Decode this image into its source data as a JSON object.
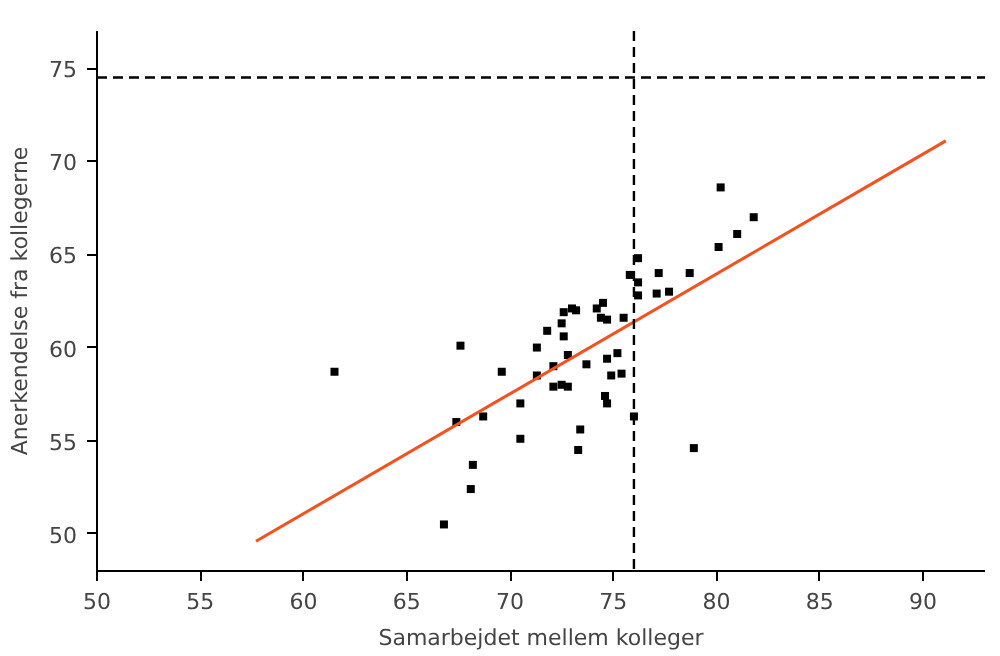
{
  "chart_data": {
    "type": "scatter",
    "xlabel": "Samarbejdet mellem kolleger",
    "ylabel": "Anerkendelse fra kollegerne",
    "xlim": [
      50,
      93
    ],
    "ylim": [
      48,
      77
    ],
    "xticks": [
      50,
      55,
      60,
      65,
      70,
      75,
      80,
      85,
      90
    ],
    "yticks": [
      50,
      55,
      60,
      65,
      70,
      75
    ],
    "grid": false,
    "series": [
      {
        "marker": "square",
        "color": "#000000",
        "x": [
          61.5,
          67.6,
          69.6,
          67.4,
          68.7,
          68.2,
          68.1,
          66.8,
          70.5,
          70.5,
          71.3,
          71.3,
          71.8,
          72.1,
          72.1,
          72.5,
          72.5,
          72.6,
          72.6,
          72.8,
          72.8,
          73.0,
          73.2,
          73.4,
          73.3,
          73.7,
          74.2,
          74.4,
          74.5,
          74.7,
          74.7,
          74.6,
          74.7,
          74.9,
          75.2,
          75.4,
          75.5,
          75.8,
          76.0,
          76.2,
          76.2,
          76.2,
          77.1,
          77.2,
          77.7,
          78.7,
          78.9,
          80.1,
          80.2,
          81.0,
          81.8
        ],
        "values": [
          58.7,
          60.1,
          58.7,
          56.0,
          56.3,
          53.7,
          52.4,
          50.5,
          57.0,
          55.1,
          60.0,
          58.5,
          60.9,
          59.0,
          57.9,
          58.0,
          61.3,
          61.9,
          60.6,
          59.6,
          57.9,
          62.1,
          62.0,
          55.6,
          54.5,
          59.1,
          62.1,
          61.6,
          62.4,
          61.5,
          59.4,
          57.4,
          57.0,
          58.5,
          59.7,
          58.6,
          61.6,
          63.9,
          56.3,
          64.8,
          63.5,
          62.8,
          62.9,
          64.0,
          63.0,
          64.0,
          54.6,
          65.4,
          68.6,
          66.1,
          67.0
        ]
      },
      {
        "type": "line",
        "color": "#f4511e",
        "x": [
          57.7,
          91.1
        ],
        "values": [
          49.6,
          71.1
        ],
        "line_style": "solid"
      }
    ],
    "ref_lines": [
      {
        "axis": "x",
        "value": 76,
        "color": "#000000",
        "line_style": "dashed"
      },
      {
        "axis": "y",
        "value": 74.5,
        "color": "#000000",
        "line_style": "dashed"
      }
    ]
  }
}
